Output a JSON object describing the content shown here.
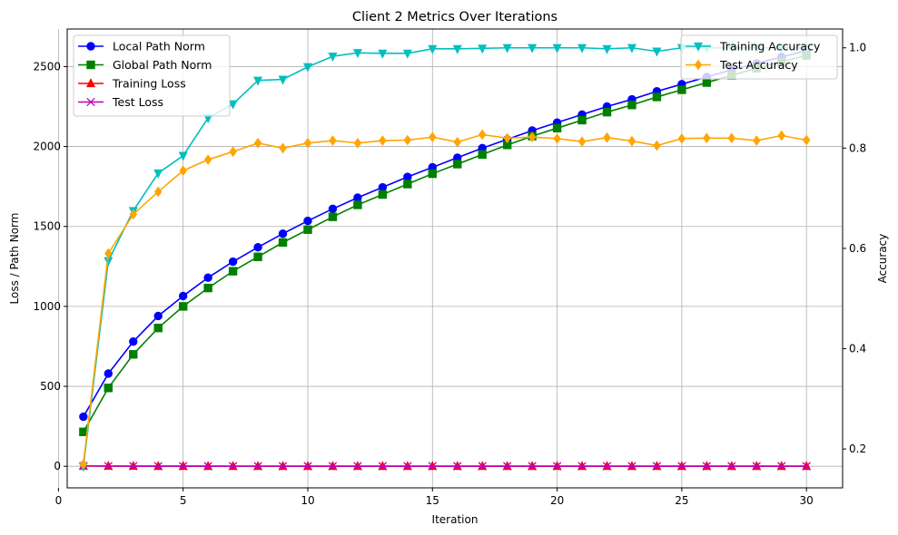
{
  "chart_data": {
    "type": "line",
    "title": "Client 2 Metrics Over Iterations",
    "xlabel": "Iteration",
    "ylabel_left": "Loss / Path Norm",
    "ylabel_right": "Accuracy",
    "xlim": [
      0.35,
      31.45
    ],
    "ylim_left": [
      -135,
      2735
    ],
    "ylim_right": [
      0.1225,
      1.0375
    ],
    "x_ticks": [
      0,
      5,
      10,
      15,
      20,
      25,
      30
    ],
    "y_ticks_left": [
      0,
      500,
      1000,
      1500,
      2000,
      2500
    ],
    "y_ticks_right": [
      0.2,
      0.4,
      0.6,
      0.8,
      1.0
    ],
    "grid": true,
    "legend_left_placement": "upper-left",
    "legend_right_placement": "upper-right",
    "x": [
      1,
      2,
      3,
      4,
      5,
      6,
      7,
      8,
      9,
      10,
      11,
      12,
      13,
      14,
      15,
      16,
      17,
      18,
      19,
      20,
      21,
      22,
      23,
      24,
      25,
      26,
      27,
      28,
      29,
      30
    ],
    "series_left": [
      {
        "name": "Local Path Norm",
        "color": "#0000ff",
        "marker": "circle",
        "values": [
          310,
          580,
          780,
          940,
          1065,
          1180,
          1280,
          1370,
          1455,
          1535,
          1610,
          1680,
          1745,
          1810,
          1870,
          1930,
          1990,
          2045,
          2100,
          2150,
          2200,
          2250,
          2295,
          2345,
          2390,
          2435,
          2480,
          2520,
          2560,
          2600
        ]
      },
      {
        "name": "Global Path Norm",
        "color": "#008000",
        "marker": "square",
        "values": [
          215,
          490,
          700,
          865,
          1000,
          1115,
          1220,
          1310,
          1400,
          1480,
          1560,
          1635,
          1700,
          1765,
          1830,
          1890,
          1950,
          2010,
          2065,
          2115,
          2165,
          2215,
          2260,
          2310,
          2355,
          2400,
          2445,
          2490,
          2530,
          2570
        ]
      },
      {
        "name": "Training Loss",
        "color": "#ff0000",
        "marker": "triangle-up",
        "values": [
          1.8,
          0.9,
          0.7,
          0.6,
          0.55,
          0.5,
          0.45,
          0.4,
          0.38,
          0.35,
          0.33,
          0.31,
          0.3,
          0.28,
          0.27,
          0.26,
          0.25,
          0.24,
          0.23,
          0.22,
          0.21,
          0.2,
          0.2,
          0.19,
          0.18,
          0.18,
          0.17,
          0.17,
          0.16,
          0.16
        ]
      },
      {
        "name": "Test Loss",
        "color": "#bf00bf",
        "marker": "x",
        "values": [
          1.9,
          1.2,
          1.0,
          0.9,
          0.8,
          0.75,
          0.72,
          0.7,
          0.7,
          0.68,
          0.68,
          0.67,
          0.67,
          0.66,
          0.66,
          0.66,
          0.65,
          0.65,
          0.65,
          0.65,
          0.65,
          0.64,
          0.64,
          0.64,
          0.64,
          0.64,
          0.64,
          0.64,
          0.64,
          0.64
        ]
      }
    ],
    "series_right": [
      {
        "name": "Training Accuracy",
        "color": "#00bfbf",
        "marker": "triangle-down",
        "values": [
          0.165,
          0.575,
          0.675,
          0.75,
          0.785,
          0.86,
          0.888,
          0.935,
          0.937,
          0.962,
          0.983,
          0.99,
          0.989,
          0.989,
          0.998,
          0.998,
          0.999,
          1.0,
          1.0,
          1.0,
          1.0,
          0.998,
          1.0,
          0.993,
          1.0,
          1.0,
          1.0,
          1.0,
          1.0,
          1.0
        ]
      },
      {
        "name": "Test Accuracy",
        "color": "#ffa500",
        "marker": "diamond",
        "values": [
          0.17,
          0.59,
          0.668,
          0.713,
          0.755,
          0.777,
          0.793,
          0.81,
          0.8,
          0.81,
          0.815,
          0.81,
          0.815,
          0.816,
          0.822,
          0.812,
          0.827,
          0.82,
          0.822,
          0.819,
          0.813,
          0.821,
          0.814,
          0.805,
          0.819,
          0.82,
          0.82,
          0.815,
          0.825,
          0.816
        ]
      }
    ]
  }
}
